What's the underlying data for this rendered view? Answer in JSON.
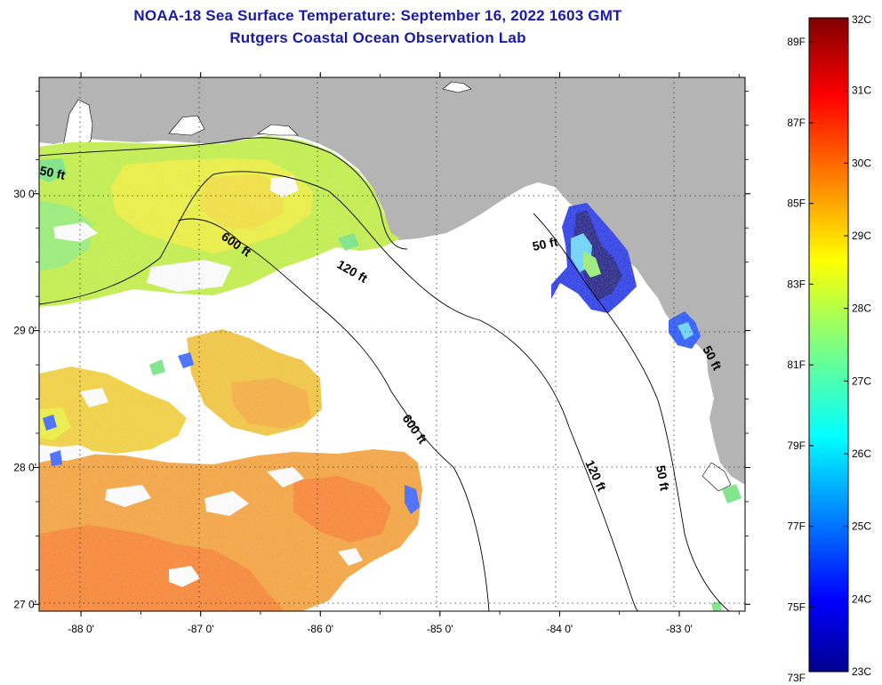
{
  "title": "NOAA-18 Sea Surface Temperature:  September 16, 2022 1603 GMT",
  "subtitle": "Rutgers Coastal Ocean Observation Lab",
  "map": {
    "lon_range": [
      -88.35,
      -82.45
    ],
    "lat_range": [
      26.95,
      30.85
    ],
    "lon_ticks": [
      {
        "value": -88,
        "label": "-88 0'"
      },
      {
        "value": -87,
        "label": "-87 0'"
      },
      {
        "value": -86,
        "label": "-86 0'"
      },
      {
        "value": -85,
        "label": "-85 0'"
      },
      {
        "value": -84,
        "label": "-84 0'"
      },
      {
        "value": -83,
        "label": "-83 0'"
      }
    ],
    "lat_ticks": [
      {
        "value": 30,
        "label": "30 0'"
      },
      {
        "value": 29,
        "label": "29 0'"
      },
      {
        "value": 28,
        "label": "28 0'"
      },
      {
        "value": 27,
        "label": "27 0'"
      }
    ],
    "grid": "dotted",
    "land_color": "#b4b4b4",
    "no_data_color": "#ffffff"
  },
  "contours": [
    {
      "label": "50 ft"
    },
    {
      "label": "600 ft"
    },
    {
      "label": "120 ft"
    },
    {
      "label": "50 ft"
    },
    {
      "label": "50 ft"
    },
    {
      "label": "600 ft"
    },
    {
      "label": "120 ft"
    },
    {
      "label": "50 ft"
    }
  ],
  "colorbar": {
    "fahrenheit_labels": [
      "89F",
      "87F",
      "85F",
      "83F",
      "81F",
      "79F",
      "77F",
      "75F",
      "73F"
    ],
    "celsius_labels": [
      "32C",
      "31C",
      "30C",
      "29C",
      "28C",
      "27C",
      "26C",
      "25C",
      "24C",
      "23C"
    ],
    "range_c": [
      23,
      32
    ],
    "colormap": "jet"
  }
}
